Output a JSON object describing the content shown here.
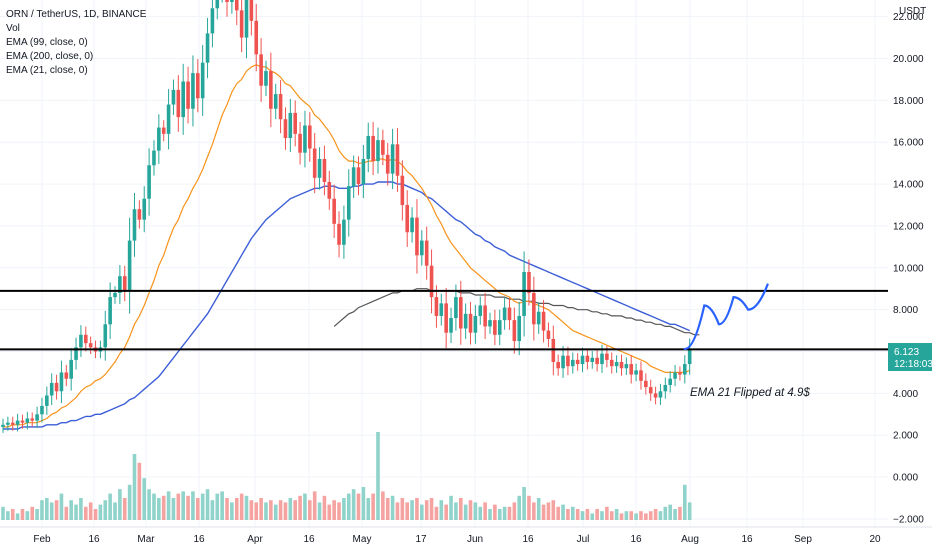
{
  "legend": {
    "symbol": "ORN / TetherUS, 1D, BINANCE",
    "vol": "Vol",
    "ema99": "EMA (99, close, 0)",
    "ema200": "EMA (200, close, 0)",
    "ema21": "EMA (21, close, 0)"
  },
  "currency": "USDT",
  "price_badge": {
    "price": "6.123",
    "countdown": "12:18:03",
    "color": "#26a69a"
  },
  "annotation": "EMA 21 Flipped at 4.9$",
  "colors": {
    "up": "#26a69a",
    "down": "#ef5350",
    "ema21": "#f7931a",
    "ema99": "#3d5fd8",
    "ema200": "#555555",
    "projection": "#2962ff",
    "vol_up": "#8fd3cb",
    "vol_down": "#f5a3a1"
  },
  "chart_data": {
    "type": "candlestick",
    "y_ticks": [
      -2,
      0,
      2,
      4,
      6,
      8,
      10,
      12,
      14,
      16,
      18,
      20,
      22
    ],
    "y_tick_labels": [
      "−2.000",
      "0.000",
      "2.000",
      "4.000",
      "6.000",
      "8.000",
      "10.000",
      "12.000",
      "14.000",
      "16.000",
      "18.000",
      "20.000",
      "22.000"
    ],
    "ylim": [
      -2.2,
      23
    ],
    "x_tick_labels": [
      "Feb",
      "16",
      "Mar",
      "16",
      "Apr",
      "16",
      "May",
      "17",
      "Jun",
      "16",
      "Jul",
      "16",
      "Aug",
      "16",
      "Sep",
      "20"
    ],
    "horizontal_levels": [
      8.9,
      6.1
    ],
    "closes": [
      2.5,
      2.6,
      2.5,
      2.7,
      2.6,
      2.8,
      2.7,
      3.0,
      3.4,
      3.9,
      4.5,
      4.1,
      5.0,
      4.7,
      5.6,
      6.2,
      6.8,
      6.4,
      6.2,
      6.0,
      6.2,
      7.3,
      8.6,
      8.8,
      9.6,
      8.9,
      11.3,
      12.8,
      12.3,
      13.3,
      14.9,
      15.6,
      16.7,
      16.4,
      17.8,
      18.5,
      17.2,
      18.9,
      17.6,
      19.3,
      18.1,
      19.8,
      21.2,
      22.4,
      23.2,
      24.0,
      22.7,
      23.6,
      22.3,
      21.0,
      23.1,
      21.8,
      20.2,
      18.7,
      19.4,
      17.6,
      18.3,
      17.1,
      16.2,
      17.4,
      16.4,
      15.5,
      16.8,
      15.7,
      14.3,
      15.2,
      14.1,
      13.3,
      12.1,
      11.1,
      12.3,
      13.9,
      14.8,
      14.0,
      15.2,
      16.3,
      15.1,
      16.1,
      15.4,
      14.5,
      15.9,
      14.4,
      13.0,
      11.7,
      12.4,
      10.6,
      11.3,
      10.1,
      8.6,
      7.7,
      8.3,
      6.9,
      7.6,
      8.6,
      7.1,
      7.8,
      6.9,
      7.7,
      8.2,
      7.2,
      7.5,
      6.8,
      7.5,
      8.1,
      7.5,
      6.5,
      7.7,
      9.8,
      8.8,
      7.3,
      7.9,
      7.0,
      6.6,
      5.5,
      5.2,
      5.8,
      5.3,
      5.6,
      5.4,
      5.8,
      5.5,
      5.7,
      5.4,
      5.9,
      5.6,
      5.3,
      5.5,
      5.2,
      5.4,
      4.9,
      5.1,
      4.6,
      4.3,
      4.0,
      3.8,
      4.1,
      4.4,
      4.7,
      5.0,
      4.9,
      5.4,
      6.123
    ],
    "ema21": [
      2.4,
      2.4,
      2.5,
      2.5,
      2.5,
      2.6,
      2.6,
      2.6,
      2.7,
      2.8,
      3.0,
      3.1,
      3.3,
      3.4,
      3.6,
      3.8,
      4.1,
      4.3,
      4.4,
      4.6,
      4.7,
      4.9,
      5.2,
      5.5,
      5.9,
      6.2,
      6.7,
      7.3,
      7.7,
      8.2,
      8.8,
      9.4,
      10.1,
      10.6,
      11.3,
      11.9,
      12.3,
      12.9,
      13.3,
      13.8,
      14.2,
      14.7,
      15.3,
      15.9,
      16.6,
      17.3,
      17.8,
      18.4,
      18.8,
      19.0,
      19.4,
      19.6,
      19.7,
      19.6,
      19.6,
      19.4,
      19.3,
      19.1,
      18.8,
      18.7,
      18.4,
      18.1,
      17.9,
      17.7,
      17.3,
      17.1,
      16.8,
      16.5,
      16.1,
      15.6,
      15.3,
      15.1,
      15.1,
      15.0,
      15.0,
      15.1,
      15.1,
      15.2,
      15.2,
      15.1,
      15.2,
      15.1,
      14.9,
      14.6,
      14.4,
      14.1,
      13.8,
      13.4,
      13.0,
      12.5,
      12.1,
      11.6,
      11.2,
      10.9,
      10.6,
      10.3,
      10.0,
      9.8,
      9.6,
      9.4,
      9.2,
      9.0,
      8.8,
      8.7,
      8.6,
      8.4,
      8.3,
      8.4,
      8.4,
      8.3,
      8.2,
      8.1,
      8.0,
      7.8,
      7.6,
      7.4,
      7.2,
      7.0,
      6.9,
      6.8,
      6.7,
      6.6,
      6.5,
      6.4,
      6.3,
      6.2,
      6.1,
      6.0,
      5.9,
      5.8,
      5.7,
      5.6,
      5.5,
      5.3,
      5.2,
      5.1,
      5.0,
      5.0,
      5.0,
      5.0,
      5.0,
      5.1
    ],
    "ema99": [
      2.3,
      2.3,
      2.3,
      2.3,
      2.4,
      2.4,
      2.4,
      2.4,
      2.4,
      2.5,
      2.5,
      2.5,
      2.6,
      2.6,
      2.7,
      2.7,
      2.8,
      2.9,
      2.9,
      3.0,
      3.0,
      3.1,
      3.2,
      3.3,
      3.4,
      3.5,
      3.7,
      3.8,
      4.0,
      4.2,
      4.4,
      4.6,
      4.8,
      5.1,
      5.4,
      5.7,
      6.0,
      6.3,
      6.6,
      6.9,
      7.2,
      7.5,
      7.8,
      8.2,
      8.6,
      9.0,
      9.4,
      9.8,
      10.2,
      10.6,
      11.0,
      11.4,
      11.7,
      12.0,
      12.3,
      12.5,
      12.7,
      12.9,
      13.1,
      13.3,
      13.4,
      13.5,
      13.6,
      13.7,
      13.8,
      13.8,
      13.9,
      13.9,
      13.9,
      13.8,
      13.8,
      13.8,
      13.9,
      13.9,
      14.0,
      14.0,
      14.0,
      14.1,
      14.1,
      14.1,
      14.1,
      14.0,
      14.0,
      13.9,
      13.8,
      13.7,
      13.6,
      13.4,
      13.3,
      13.1,
      12.9,
      12.7,
      12.5,
      12.3,
      12.2,
      12.0,
      11.8,
      11.6,
      11.5,
      11.3,
      11.2,
      11.0,
      10.9,
      10.8,
      10.6,
      10.5,
      10.4,
      10.3,
      10.2,
      10.1,
      10.0,
      9.9,
      9.8,
      9.7,
      9.6,
      9.5,
      9.4,
      9.3,
      9.2,
      9.1,
      9.0,
      8.9,
      8.8,
      8.7,
      8.6,
      8.5,
      8.4,
      8.3,
      8.2,
      8.1,
      8.0,
      7.9,
      7.8,
      7.7,
      7.6,
      7.5,
      7.4,
      7.3,
      7.3,
      7.2,
      7.1,
      7.0
    ],
    "ema200_start": 68,
    "ema200": [
      7.2,
      7.4,
      7.6,
      7.8,
      7.9,
      8.1,
      8.2,
      8.3,
      8.4,
      8.5,
      8.6,
      8.7,
      8.8,
      8.8,
      8.9,
      8.9,
      8.9,
      9.0,
      9.0,
      9.0,
      8.9,
      8.9,
      8.9,
      8.9,
      8.9,
      8.9,
      8.8,
      8.8,
      8.8,
      8.7,
      8.7,
      8.7,
      8.7,
      8.6,
      8.6,
      8.6,
      8.5,
      8.5,
      8.5,
      8.4,
      8.4,
      8.4,
      8.3,
      8.3,
      8.3,
      8.2,
      8.2,
      8.2,
      8.1,
      8.1,
      8.0,
      8.0,
      8.0,
      7.9,
      7.9,
      7.8,
      7.8,
      7.7,
      7.7,
      7.7,
      7.6,
      7.6,
      7.5,
      7.5,
      7.4,
      7.4,
      7.3,
      7.3,
      7.2,
      7.2,
      7.1,
      7.0,
      6.9,
      6.9,
      6.8,
      6.8
    ],
    "projection": [
      [
        140,
        6.123
      ],
      [
        144,
        8.2
      ],
      [
        147,
        7.3
      ],
      [
        150,
        8.6
      ],
      [
        153,
        8.0
      ],
      [
        157,
        9.2
      ]
    ],
    "volume": [
      0.6,
      0.4,
      0.5,
      0.3,
      0.5,
      0.4,
      0.6,
      0.5,
      0.9,
      1.0,
      0.8,
      0.9,
      1.2,
      0.6,
      0.9,
      0.7,
      1.0,
      0.6,
      0.8,
      0.5,
      0.7,
      0.9,
      1.2,
      0.8,
      1.4,
      1.0,
      1.6,
      3.0,
      2.6,
      1.9,
      1.4,
      1.2,
      1.0,
      1.1,
      1.3,
      1.0,
      1.2,
      1.3,
      1.1,
      1.3,
      1.0,
      1.2,
      1.4,
      0.9,
      1.2,
      1.3,
      1.0,
      0.8,
      1.0,
      1.2,
      1.1,
      0.9,
      0.8,
      1.0,
      0.8,
      0.9,
      0.7,
      0.9,
      0.8,
      1.0,
      0.9,
      1.1,
      1.2,
      0.9,
      1.3,
      0.8,
      1.1,
      0.7,
      0.9,
      0.8,
      1.0,
      1.2,
      1.4,
      1.2,
      1.5,
      1.0,
      1.2,
      4.0,
      1.3,
      1.0,
      1.1,
      0.8,
      1.0,
      0.8,
      0.9,
      1.0,
      0.7,
      0.9,
      1.0,
      0.6,
      0.9,
      0.7,
      1.1,
      0.8,
      1.0,
      0.7,
      0.9,
      0.8,
      0.6,
      0.8,
      0.5,
      0.7,
      0.5,
      0.6,
      0.6,
      0.8,
      1.1,
      1.5,
      1.1,
      0.8,
      1.0,
      0.7,
      0.8,
      0.9,
      0.6,
      0.7,
      0.5,
      0.6,
      0.5,
      0.4,
      0.5,
      0.3,
      0.5,
      0.4,
      0.6,
      0.4,
      0.5,
      0.3,
      0.4,
      0.4,
      0.3,
      0.4,
      0.3,
      0.4,
      0.5,
      0.4,
      0.6,
      0.7,
      0.5,
      0.6,
      1.6,
      0.8
    ]
  }
}
